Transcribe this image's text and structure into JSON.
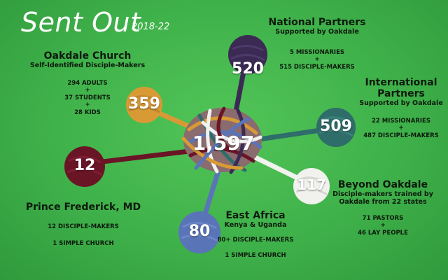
{
  "header": {
    "title": "Sent Out",
    "years": "2018-22"
  },
  "total": "1,597",
  "groups": {
    "oakdale": {
      "number": "359",
      "title": "Oakdale Church",
      "subtitle": "Self-Identified Disciple-Makers",
      "lines": [
        "294  ADULTS",
        "+",
        "37  STUDENTS",
        "+",
        "28  KIDS"
      ],
      "color": "#d89a35"
    },
    "national": {
      "number": "520",
      "title": "National Partners",
      "subtitle": "Supported  by Oakdale",
      "lines": [
        "5  MISSIONARIES",
        "+",
        "515  DISCIPLE-MAKERS"
      ],
      "color": "#3b2a54"
    },
    "international": {
      "number": "509",
      "title_line1": "International",
      "title_line2": "Partners",
      "subtitle": "Supported  by Oakdale",
      "lines": [
        "22  MISSIONARIES",
        "+",
        "487  DISCIPLE-MAKERS"
      ],
      "color": "#2e6d6a"
    },
    "prince": {
      "number": "12",
      "title": "Prince Frederick, MD",
      "lines": [
        "12 DISCIPLE-MAKERS",
        "1  SIMPLE CHURCH"
      ],
      "color": "#6a1526"
    },
    "east_africa": {
      "number": "80",
      "title": "East Africa",
      "subtitle": "Kenya &  Uganda",
      "lines": [
        "80+  DISCIPLE-MAKERS",
        "1  SIMPLE CHURCH"
      ],
      "color": "#5a74b8"
    },
    "beyond": {
      "number": "117",
      "title": "Beyond Oakdale",
      "subtitle_line1": "Disciple-makers trained by",
      "subtitle_line2": "Oakdale from 22 states",
      "lines": [
        "71 PASTORS",
        "+",
        "46  LAY PEOPLE"
      ],
      "color": "#f1f1ee"
    }
  }
}
